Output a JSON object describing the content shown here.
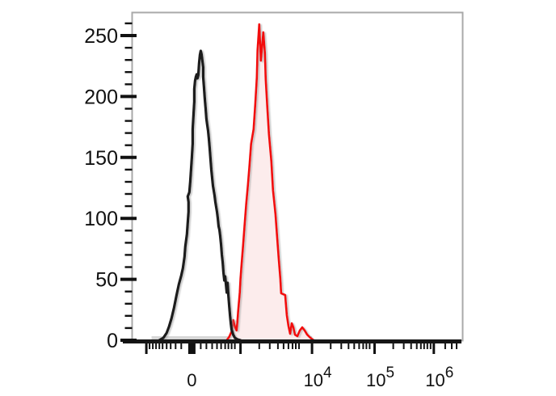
{
  "chart_data": {
    "type": "line",
    "title": "",
    "description": "Flow cytometry overlay histogram: black open control curve and red filled stained-sample curve on a biexponential fluorescence axis",
    "x_axis": {
      "scale": "biexponential",
      "tick_labels": [
        {
          "f": 0.1818,
          "base": "0",
          "sup": ""
        },
        {
          "f": 0.5455,
          "base": "10",
          "sup": "4"
        },
        {
          "f": 0.7346,
          "base": "10",
          "sup": "5"
        },
        {
          "f": 0.914,
          "base": "10",
          "sup": "6"
        }
      ],
      "ticks_tall": [
        0.0442,
        0.3292,
        0.5455,
        0.7346,
        0.914
      ],
      "tick_zero": 0.1818,
      "ticks_small": [
        0.054,
        0.0639,
        0.0737,
        0.0835,
        0.0934,
        0.1057,
        0.1179,
        0.1327,
        0.1499,
        0.2088,
        0.226,
        0.2432,
        0.258,
        0.2703,
        0.2826,
        0.2924,
        0.3022,
        0.312,
        0.3857,
        0.4177,
        0.4423,
        0.4595,
        0.4742,
        0.4865,
        0.4963,
        0.5061,
        0.602,
        0.6339,
        0.656,
        0.6732,
        0.688,
        0.7003,
        0.7101,
        0.7199,
        0.7912,
        0.8231,
        0.8452,
        0.8624,
        0.8747,
        0.8845,
        0.8944,
        0.9042,
        0.9484,
        0.9681,
        0.9828
      ]
    },
    "y_axis": {
      "major_values": [
        0,
        50,
        100,
        150,
        200,
        250
      ],
      "minor_step": 10,
      "minor_max": 260,
      "range": [
        0,
        269
      ]
    },
    "series": [
      {
        "name": "stained-sample-red",
        "color": "#f20d0d",
        "fill": "#fcecec",
        "stroke_width": 2.6,
        "points": [
          [
            0.2875,
            0
          ],
          [
            0.2948,
            2.7
          ],
          [
            0.3022,
            7.3
          ],
          [
            0.3071,
            16.6
          ],
          [
            0.312,
            11.3
          ],
          [
            0.317,
            8.0
          ],
          [
            0.3194,
            13.9
          ],
          [
            0.3219,
            23.9
          ],
          [
            0.3268,
            39.1
          ],
          [
            0.3292,
            50.4
          ],
          [
            0.3317,
            60.3
          ],
          [
            0.3366,
            76.9
          ],
          [
            0.3415,
            94.8
          ],
          [
            0.3464,
            112.1
          ],
          [
            0.3514,
            126.7
          ],
          [
            0.3563,
            143.2
          ],
          [
            0.3612,
            161.1
          ],
          [
            0.3686,
            173.1
          ],
          [
            0.3735,
            193.0
          ],
          [
            0.3784,
            215.5
          ],
          [
            0.3808,
            238.1
          ],
          [
            0.3857,
            259.3
          ],
          [
            0.3907,
            229.4
          ],
          [
            0.398,
            252.7
          ],
          [
            0.4029,
            235.4
          ],
          [
            0.4054,
            214.2
          ],
          [
            0.4103,
            191.0
          ],
          [
            0.4152,
            169.1
          ],
          [
            0.4226,
            146.6
          ],
          [
            0.4275,
            123.3
          ],
          [
            0.4349,
            103.4
          ],
          [
            0.4398,
            84.9
          ],
          [
            0.4447,
            67.0
          ],
          [
            0.4496,
            50.4
          ],
          [
            0.4521,
            38.5
          ],
          [
            0.4644,
            37.1
          ],
          [
            0.4693,
            20.6
          ],
          [
            0.4742,
            11.9
          ],
          [
            0.4791,
            5.3
          ],
          [
            0.484,
            13.9
          ],
          [
            0.4889,
            10.6
          ],
          [
            0.4939,
            4.6
          ],
          [
            0.5012,
            3.3
          ],
          [
            0.5086,
            8.0
          ],
          [
            0.516,
            10.6
          ],
          [
            0.5233,
            8.0
          ],
          [
            0.5307,
            4.6
          ],
          [
            0.5405,
            2.0
          ],
          [
            0.5504,
            0
          ]
        ]
      },
      {
        "name": "unstained-control-black",
        "color": "#1a1a1a",
        "fill": "none",
        "stroke_width": 3.2,
        "points": [
          [
            0.0835,
            0
          ],
          [
            0.0958,
            2.0
          ],
          [
            0.1057,
            6.0
          ],
          [
            0.113,
            11.3
          ],
          [
            0.1204,
            17.9
          ],
          [
            0.1278,
            26.5
          ],
          [
            0.1351,
            36.5
          ],
          [
            0.1425,
            45.8
          ],
          [
            0.1499,
            53.1
          ],
          [
            0.1548,
            59.0
          ],
          [
            0.1597,
            68.3
          ],
          [
            0.1622,
            76.9
          ],
          [
            0.1671,
            86.9
          ],
          [
            0.1695,
            96.2
          ],
          [
            0.172,
            105.4
          ],
          [
            0.172,
            113.4
          ],
          [
            0.1695,
            118.0
          ],
          [
            0.1744,
            121.4
          ],
          [
            0.1769,
            130.0
          ],
          [
            0.1794,
            139.9
          ],
          [
            0.1818,
            149.9
          ],
          [
            0.1843,
            161.1
          ],
          [
            0.1843,
            173.1
          ],
          [
            0.1867,
            184.4
          ],
          [
            0.1892,
            195.6
          ],
          [
            0.1892,
            206.2
          ],
          [
            0.1917,
            212.9
          ],
          [
            0.1941,
            216.2
          ],
          [
            0.1966,
            218.2
          ],
          [
            0.199,
            214.9
          ],
          [
            0.2015,
            217.5
          ],
          [
            0.2039,
            227.5
          ],
          [
            0.2064,
            234.1
          ],
          [
            0.2088,
            237.4
          ],
          [
            0.2113,
            234.7
          ],
          [
            0.2138,
            229.4
          ],
          [
            0.2162,
            224.1
          ],
          [
            0.2162,
            216.2
          ],
          [
            0.2187,
            207.6
          ],
          [
            0.2211,
            198.3
          ],
          [
            0.2236,
            189.7
          ],
          [
            0.226,
            181.7
          ],
          [
            0.2285,
            176.4
          ],
          [
            0.231,
            171.8
          ],
          [
            0.2334,
            165.1
          ],
          [
            0.2359,
            157.2
          ],
          [
            0.2383,
            148.5
          ],
          [
            0.2408,
            139.9
          ],
          [
            0.2432,
            133.3
          ],
          [
            0.2457,
            126.7
          ],
          [
            0.2506,
            118.7
          ],
          [
            0.2531,
            113.4
          ],
          [
            0.258,
            105.4
          ],
          [
            0.2605,
            100.1
          ],
          [
            0.2629,
            93.5
          ],
          [
            0.2654,
            90.8
          ],
          [
            0.2678,
            85.5
          ],
          [
            0.2703,
            78.2
          ],
          [
            0.2727,
            70.3
          ],
          [
            0.2752,
            63.7
          ],
          [
            0.2776,
            55.7
          ],
          [
            0.2801,
            49.1
          ],
          [
            0.2826,
            52.4
          ],
          [
            0.285,
            45.8
          ],
          [
            0.2875,
            39.1
          ],
          [
            0.2899,
            47.1
          ],
          [
            0.2924,
            37.1
          ],
          [
            0.2948,
            28.5
          ],
          [
            0.2973,
            20.6
          ],
          [
            0.2998,
            13.9
          ],
          [
            0.3022,
            8.6
          ],
          [
            0.3071,
            4.6
          ],
          [
            0.312,
            2.0
          ],
          [
            0.3194,
            0.7
          ],
          [
            0.3292,
            0
          ]
        ]
      }
    ],
    "baseline_smear": {
      "color": "#d7d7d7",
      "f_start": 0.06,
      "f_end": 0.5455
    },
    "legend": "none",
    "grid": false
  },
  "colors": {
    "background": "#ffffff",
    "plot_border": "#a9a9a9",
    "axis": "#161616",
    "tick": "#111111",
    "red_curve": "#f20d0d",
    "red_fill": "#fcecec",
    "black_curve": "#1a1a1a"
  }
}
